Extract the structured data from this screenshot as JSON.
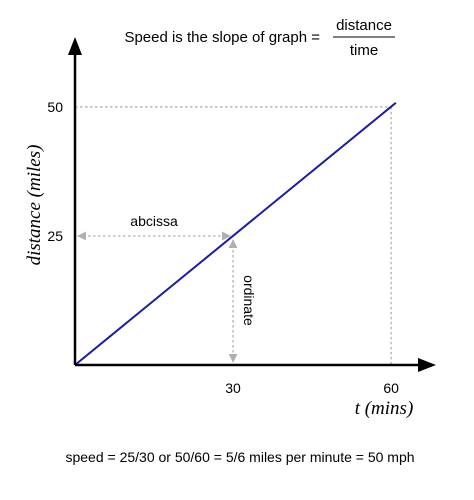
{
  "chart_data": {
    "type": "line",
    "title_prefix": "Speed is the slope of graph =",
    "title_fraction": {
      "numerator": "distance",
      "denominator": "time"
    },
    "xlabel": {
      "symbol": "t",
      "unit": "(mins)"
    },
    "ylabel": "distance (miles)",
    "xlim": [
      0,
      67
    ],
    "ylim": [
      0,
      62
    ],
    "x_ticks": [
      30,
      60
    ],
    "y_ticks": [
      25,
      50
    ],
    "series": [
      {
        "x": [
          0,
          60.9
        ],
        "y": [
          0,
          50.8
        ],
        "color": "#1a1aa8"
      }
    ],
    "guides": [
      {
        "from": [
          0,
          50
        ],
        "to": [
          60,
          50
        ],
        "style": "dotted"
      },
      {
        "from": [
          60,
          50
        ],
        "to": [
          60,
          0
        ],
        "style": "dotted"
      }
    ],
    "annotations": {
      "abscissa": {
        "label": "abcissa",
        "from": [
          0,
          25
        ],
        "to": [
          30,
          25
        ]
      },
      "ordinate": {
        "label": "ordinate",
        "from": [
          30,
          25
        ],
        "to": [
          30,
          0
        ]
      }
    },
    "grid": false,
    "axis_color": "#000000",
    "guide_color": "#b0b0b0",
    "footer": "speed = 25/30 or 50/60 = 5/6 miles per minute = 50 mph"
  }
}
